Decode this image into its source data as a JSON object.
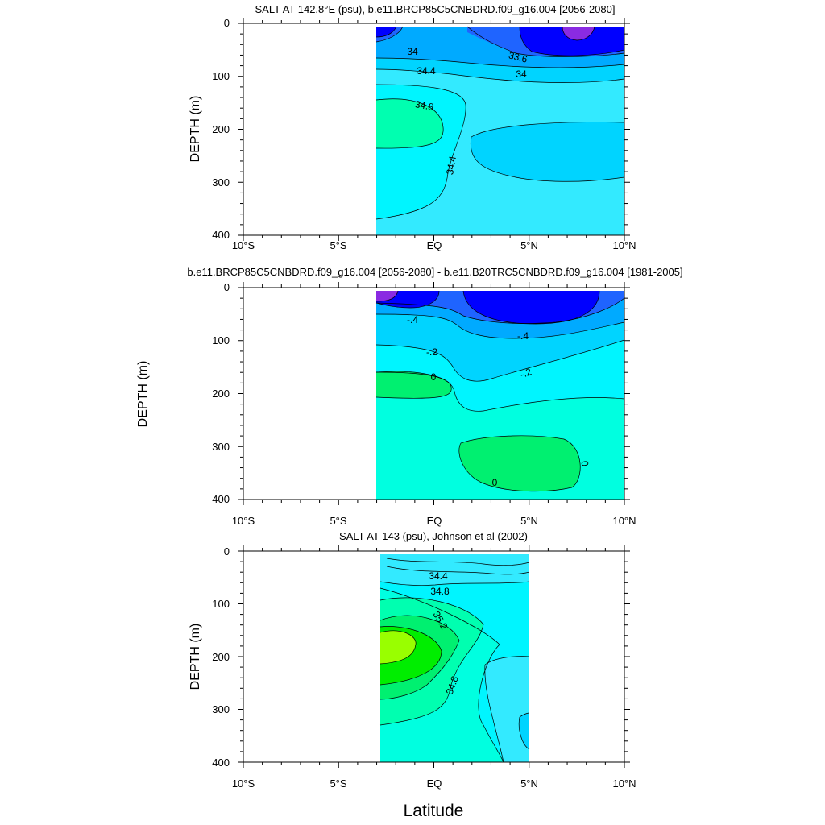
{
  "xlabel": "Latitude",
  "chart_data": [
    {
      "type": "contour",
      "title": "SALT AT 142.8°E (psu), b.e11.BRCP85C5CNBDRD.f09_g16.004 [2056-2080]",
      "ylabel": "DEPTH (m)",
      "xlim": [
        -10,
        10
      ],
      "ylim": [
        400,
        0
      ],
      "y_inverted": true,
      "x_ticks": [
        "10°S",
        "5°S",
        "EQ",
        "5°N",
        "10°N"
      ],
      "y_ticks": [
        "0",
        "100",
        "200",
        "300",
        "400"
      ],
      "data_extent": {
        "lat": [
          -3,
          10
        ],
        "depth": [
          5,
          400
        ]
      },
      "contour_labels": [
        {
          "text": "34",
          "lat": -1.2,
          "depth": 55
        },
        {
          "text": "33.6",
          "lat": 4.2,
          "depth": 63
        },
        {
          "text": "34",
          "lat": 4.5,
          "depth": 95
        },
        {
          "text": "34.4",
          "lat": -0.5,
          "depth": 90
        },
        {
          "text": "34.8",
          "lat": -0.6,
          "depth": 155
        },
        {
          "text": "34.4",
          "lat": 1.0,
          "depth": 265
        }
      ],
      "legend": null
    },
    {
      "type": "contour",
      "title": "b.e11.BRCP85C5CNBDRD.f09_g16.004 [2056-2080] - b.e11.B20TRC5CNBDRD.f09_g16.004 [1981-2005]",
      "ylabel": "DEPTH (m)",
      "xlim": [
        -10,
        10
      ],
      "ylim": [
        400,
        0
      ],
      "y_inverted": true,
      "x_ticks": [
        "10°S",
        "5°S",
        "EQ",
        "5°N",
        "10°N"
      ],
      "y_ticks": [
        "0",
        "100",
        "200",
        "300",
        "400"
      ],
      "data_extent": {
        "lat": [
          -3,
          10
        ],
        "depth": [
          5,
          400
        ]
      },
      "contour_labels": [
        {
          "text": "-.4",
          "lat": -1.2,
          "depth": 60
        },
        {
          "text": "-.4",
          "lat": 4.6,
          "depth": 92
        },
        {
          "text": "-.2",
          "lat": -0.2,
          "depth": 122
        },
        {
          "text": "-.2",
          "lat": 4.8,
          "depth": 162
        },
        {
          "text": "0",
          "lat": -0.2,
          "depth": 172
        },
        {
          "text": "0",
          "lat": 7.4,
          "depth": 330
        },
        {
          "text": "0",
          "lat": 3.1,
          "depth": 372
        }
      ],
      "legend": null
    },
    {
      "type": "contour",
      "title": "SALT AT 143 (psu), Johnson et al (2002)",
      "ylabel": "DEPTH (m)",
      "xlim": [
        -10,
        10
      ],
      "ylim": [
        400,
        0
      ],
      "y_inverted": true,
      "x_ticks": [
        "10°S",
        "5°S",
        "EQ",
        "5°N",
        "10°N"
      ],
      "y_ticks": [
        "0",
        "100",
        "200",
        "300",
        "400"
      ],
      "data_extent": {
        "lat": [
          -2.8,
          5
        ],
        "depth": [
          5,
          400
        ]
      },
      "contour_labels": [
        {
          "text": "34.4",
          "lat": 0.1,
          "depth": 48
        },
        {
          "text": "34.8",
          "lat": 0.3,
          "depth": 76
        },
        {
          "text": "35.2",
          "lat": 0.2,
          "depth": 130
        },
        {
          "text": "34.8",
          "lat": 1.0,
          "depth": 240
        }
      ],
      "legend": null
    }
  ],
  "colors": {
    "purple": "#8a2be2",
    "deep_blue": "#0000ff",
    "blue": "#1f64ff",
    "sky": "#00aaff",
    "cyan_mid": "#00d4ff",
    "cyan": "#33eaff",
    "cyan_light": "#00f5ff",
    "aqua": "#00ffe0",
    "aqua_green": "#00ffb0",
    "green": "#00f070",
    "bright_green": "#00ee00",
    "lime": "#99ff00"
  }
}
